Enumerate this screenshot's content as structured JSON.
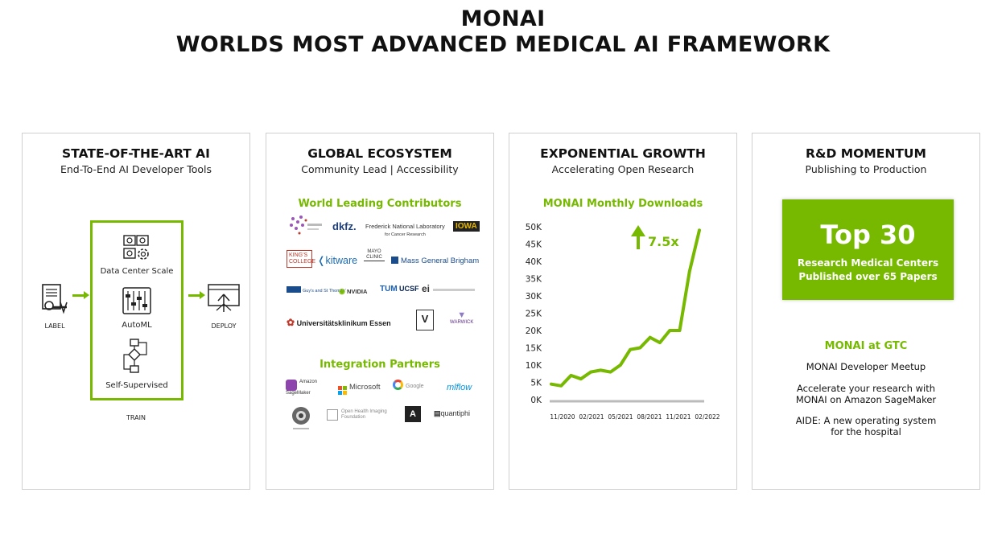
{
  "header": {
    "title_line1": "MONAI",
    "title_line2": "WORLDS MOST ADVANCED MEDICAL AI FRAMEWORK"
  },
  "panels": {
    "ai": {
      "title": "STATE-OF-THE-ART AI",
      "subtitle": "End-To-End AI Developer Tools",
      "label": "LABEL",
      "deploy": "DEPLOY",
      "train": "TRAIN",
      "stages": [
        "Data Center Scale",
        "AutoML",
        "Self-Supervised"
      ]
    },
    "ecosystem": {
      "title": "GLOBAL ECOSYSTEM",
      "subtitle": "Community Lead | Accessibility",
      "contributors_heading": "World Leading Contributors",
      "partners_heading": "Integration Partners",
      "contributors": {
        "dkfz": "dkfz.",
        "frederick": "Frederick National Laboratory",
        "frederick_sub": "for Cancer Research",
        "iowa": "IOWA",
        "kings": "KING'S COLLEGE",
        "kitware": "kitware",
        "mayo": "MAYO CLINIC",
        "mgb": "Mass General Brigham",
        "guys": "Guy's and St Thomas'",
        "nvidia": "NVIDIA",
        "tum": "TUM",
        "ucsf": "UCSF",
        "ei": "ei",
        "ukessen": "Universitätsklinikum Essen",
        "vanderbilt": "V",
        "warwick": "WARWICK"
      },
      "partners": {
        "sagemaker": "Amazon SageMaker",
        "microsoft": "Microsoft",
        "google": "Google",
        "mlflow": "mlflow",
        "ohif": "Open Health Imaging Foundation",
        "quantiphi": "quantiphi"
      }
    },
    "growth": {
      "title": "EXPONENTIAL GROWTH",
      "subtitle": "Accelerating Open Research",
      "chart_heading": "MONAI Monthly Downloads",
      "multiplier": "7.5x"
    },
    "rd": {
      "title": "R&D MOMENTUM",
      "subtitle": "Publishing to Production",
      "top_big": "Top 30",
      "top_line1": "Research Medical Centers",
      "top_line2": "Published over 65 Papers",
      "gtc_heading": "MONAI at GTC",
      "gtc_item1": "MONAI Developer Meetup",
      "gtc_item2_l1": "Accelerate your research with",
      "gtc_item2_l2": "MONAI on Amazon SageMaker",
      "gtc_item3_l1": "AIDE: A new operating system",
      "gtc_item3_l2": "for the hospital"
    }
  },
  "chart_data": {
    "type": "line",
    "title": "MONAI Monthly Downloads",
    "x_tick_labels": [
      "11/2020",
      "02/2021",
      "05/2021",
      "08/2021",
      "11/2021",
      "02/2022"
    ],
    "y_tick_labels": [
      "0K",
      "5K",
      "10K",
      "15K",
      "20K",
      "25K",
      "30K",
      "35K",
      "40K",
      "45K",
      "50K"
    ],
    "ylim": [
      0,
      50000
    ],
    "x": [
      "2020-11",
      "2020-12",
      "2021-01",
      "2021-02",
      "2021-03",
      "2021-04",
      "2021-05",
      "2021-06",
      "2021-07",
      "2021-08",
      "2021-09",
      "2021-10",
      "2021-11",
      "2021-12",
      "2022-01",
      "2022-02"
    ],
    "series": [
      {
        "values": [
          4500,
          4000,
          7000,
          6000,
          8000,
          8500,
          8000,
          10000,
          14500,
          15000,
          18000,
          16500,
          20000,
          20000,
          37000,
          49000
        ],
        "color": "#76b900"
      }
    ],
    "annotation": "7.5x",
    "grid": false
  },
  "colors": {
    "accent": "#76b900",
    "border": "#cfcfcf"
  }
}
